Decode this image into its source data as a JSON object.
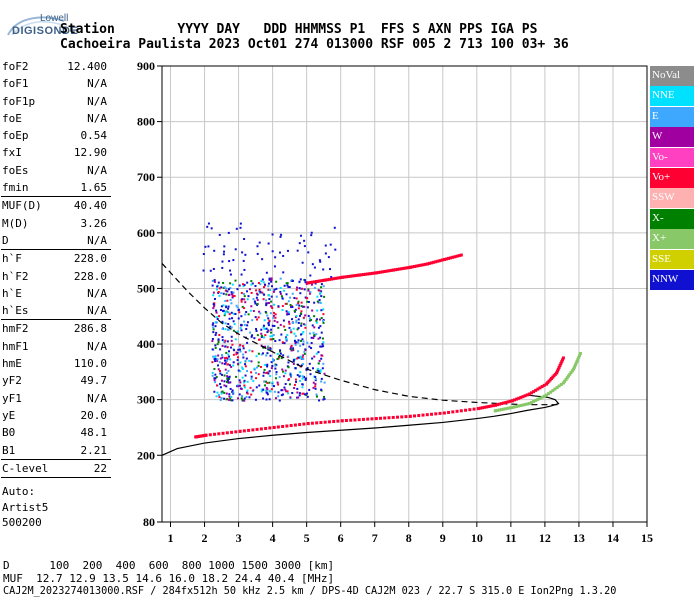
{
  "logo": {
    "top": "Lowell",
    "bottom": "DIGISONDE"
  },
  "header": {
    "row1": "Station        YYYY DAY   DDD HHMMSS P1  FFS S AXN PPS IGA PS",
    "row2": "Cachoeira Paulista 2023 Oct01 274 013000 RSF 005 2 713 100 03+ 36"
  },
  "params": {
    "group1": [
      {
        "name": "foF2",
        "value": "12.400"
      },
      {
        "name": "foF1",
        "value": "N/A"
      },
      {
        "name": "foF1p",
        "value": "N/A"
      },
      {
        "name": "foE",
        "value": "N/A"
      },
      {
        "name": "foEp",
        "value": "0.54"
      },
      {
        "name": "fxI",
        "value": "12.90"
      },
      {
        "name": "foEs",
        "value": "N/A"
      },
      {
        "name": "fmin",
        "value": "1.65"
      }
    ],
    "group2": [
      {
        "name": "MUF(D)",
        "value": "40.40"
      },
      {
        "name": "M(D)",
        "value": "3.26"
      },
      {
        "name": "D",
        "value": "N/A"
      }
    ],
    "group3": [
      {
        "name": "h`F",
        "value": "228.0"
      },
      {
        "name": "h`F2",
        "value": "228.0"
      },
      {
        "name": "h`E",
        "value": "N/A"
      },
      {
        "name": "h`Es",
        "value": "N/A"
      }
    ],
    "group4": [
      {
        "name": "hmF2",
        "value": "286.8"
      },
      {
        "name": "hmF1",
        "value": "N/A"
      },
      {
        "name": "hmE",
        "value": "110.0"
      },
      {
        "name": "yF2",
        "value": "49.7"
      },
      {
        "name": "yF1",
        "value": "N/A"
      },
      {
        "name": "yE",
        "value": "20.0"
      },
      {
        "name": "B0",
        "value": "48.1"
      },
      {
        "name": "B1",
        "value": "2.21"
      }
    ],
    "group5": [
      {
        "name": "C-level",
        "value": "22"
      }
    ],
    "extra": [
      "Auto:",
      "Artist5",
      "500200"
    ]
  },
  "legend": [
    {
      "label": "NoVal",
      "color": "#8c8c8c"
    },
    {
      "label": "NNE",
      "color": "#00e0ff"
    },
    {
      "label": "E",
      "color": "#3ea8ff"
    },
    {
      "label": "W",
      "color": "#a000a0"
    },
    {
      "label": "Vo-",
      "color": "#ff40c0"
    },
    {
      "label": "Vo+",
      "color": "#ff0033"
    },
    {
      "label": "SSW",
      "color": "#ffb0b0"
    },
    {
      "label": "X-",
      "color": "#008000"
    },
    {
      "label": "X+",
      "color": "#88c868"
    },
    {
      "label": "SSE",
      "color": "#d0d000"
    },
    {
      "label": "NNW",
      "color": "#1010d0"
    }
  ],
  "footer": {
    "line1": "D      100  200  400  600  800 1000 1500 3000 [km]",
    "line2": "MUF  12.7 12.9 13.5 14.6 16.0 18.2 24.4 40.4 [MHz]",
    "line3": "CAJ2M_2023274013000.RSF / 284fx512h 50 kHz 2.5 km / DPS-4D CAJ2M 023 / 22.7 S 315.0 E Ion2Png 1.3.20"
  },
  "chart_data": {
    "type": "scatter",
    "xlim": [
      0.75,
      15
    ],
    "ylim": [
      80,
      900
    ],
    "xticks": [
      1,
      2,
      3,
      4,
      5,
      6,
      7,
      8,
      9,
      10,
      11,
      12,
      13,
      14,
      15
    ],
    "yticks": [
      80,
      200,
      300,
      400,
      500,
      600,
      700,
      800,
      900
    ],
    "grid": true,
    "series": [
      {
        "type": "line",
        "style": "solid",
        "color": "#000000",
        "x": [
          0.75,
          1.2,
          2,
          3,
          4,
          5,
          6,
          7,
          8,
          9,
          10,
          10.5,
          11,
          11.5,
          12,
          12.2,
          12.4,
          12.3,
          12.1,
          11.8,
          11.5
        ],
        "y": [
          200,
          212,
          222,
          230,
          236,
          241,
          245,
          249,
          254,
          259,
          266,
          270,
          275,
          281,
          286,
          289,
          293,
          300,
          304,
          306,
          308
        ]
      },
      {
        "type": "line",
        "style": "dashed",
        "color": "#000000",
        "x": [
          0.75,
          1.5,
          2,
          2.5,
          3,
          3.5,
          4,
          4.5,
          5,
          6,
          7,
          8,
          9,
          10,
          11,
          11.5,
          12,
          12.4
        ],
        "y": [
          545,
          495,
          465,
          438,
          418,
          402,
          386,
          370,
          355,
          335,
          318,
          306,
          299,
          295,
          292,
          291,
          291,
          291
        ]
      },
      {
        "type": "scatter",
        "name": "Vo+",
        "color": "#ff0033",
        "x": [
          1.7,
          2,
          3,
          4,
          5,
          6,
          7,
          8,
          9,
          10,
          10.5,
          11,
          11.5,
          12,
          12.3,
          12.5
        ],
        "y": [
          233,
          236,
          243,
          250,
          257,
          262,
          266,
          270,
          276,
          284,
          290,
          298,
          310,
          328,
          348,
          375
        ]
      },
      {
        "type": "scatter",
        "name": "X+",
        "color": "#88c868",
        "x": [
          10.5,
          11,
          11.5,
          12,
          12.5,
          12.8,
          13
        ],
        "y": [
          280,
          286,
          293,
          308,
          330,
          355,
          383
        ]
      },
      {
        "type": "scatter",
        "name": "Vo+",
        "color": "#ff0033",
        "x": [
          5,
          5.5,
          6,
          6.5,
          7,
          7.5,
          8,
          8.5,
          9,
          9.5
        ],
        "y": [
          510,
          515,
          520,
          524,
          528,
          533,
          538,
          544,
          552,
          560
        ]
      }
    ]
  }
}
